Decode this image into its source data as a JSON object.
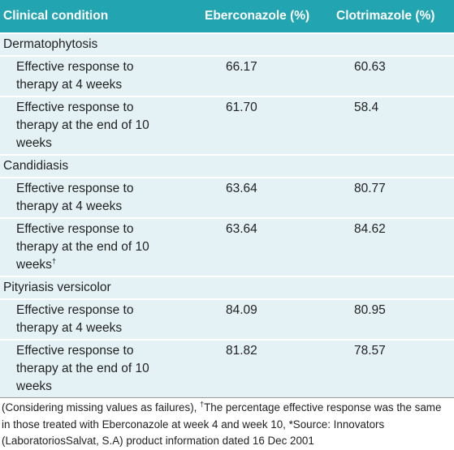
{
  "table": {
    "header": [
      "Clinical condition",
      "Eberconazole (%)",
      "Clotrimazole (%)"
    ],
    "groups": [
      {
        "name": "Dermatophytosis",
        "rows": [
          {
            "label": "Effective response to therapy at 4 weeks",
            "values": [
              "66.17",
              "60.63"
            ]
          },
          {
            "label": "Effective response to therapy at the end of 10 weeks",
            "values": [
              "61.70",
              "58.4"
            ]
          }
        ]
      },
      {
        "name": "Candidiasis",
        "rows": [
          {
            "label": "Effective response to therapy at 4 weeks",
            "values": [
              "63.64",
              "80.77"
            ]
          },
          {
            "label": "Effective response to therapy at the end of 10 weeks",
            "label_note": "†",
            "values": [
              "63.64",
              "84.62"
            ]
          }
        ]
      },
      {
        "name": "Pityriasis versicolor",
        "rows": [
          {
            "label": "Effective response to therapy at 4 weeks",
            "values": [
              "84.09",
              "80.95"
            ]
          },
          {
            "label": "Effective response to therapy at the end of 10 weeks",
            "values": [
              "81.82",
              "78.57"
            ]
          }
        ]
      }
    ]
  },
  "footnote": {
    "text1": "(Considering missing values as failures), ",
    "mark": "†",
    "text2": "The percentage effective response was the same in those treated with Eberconazole at week 4 and week 10, *Source: Innovators (LaboratoriosSalvat, S.A) product information dated 16 Dec 2001"
  }
}
